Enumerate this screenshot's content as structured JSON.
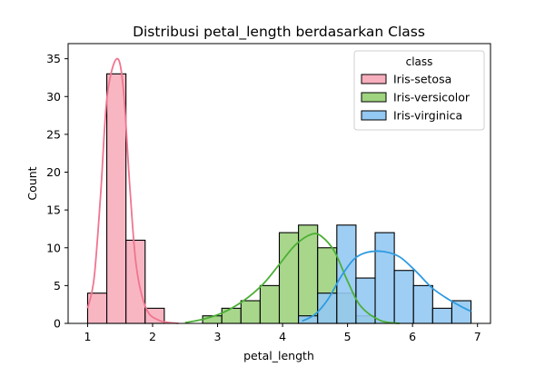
{
  "chart_data": {
    "type": "histogram",
    "title": "Distribusi petal_length berdasarkan Class",
    "xlabel": "petal_length",
    "ylabel": "Count",
    "xlim": [
      0.7,
      7.2
    ],
    "ylim": [
      0,
      37
    ],
    "x_ticks": [
      1,
      2,
      3,
      4,
      5,
      6,
      7
    ],
    "y_ticks": [
      0,
      5,
      10,
      15,
      20,
      25,
      30,
      35
    ],
    "bin_edges": [
      1.0,
      1.295,
      1.59,
      1.885,
      2.18,
      2.475,
      2.77,
      3.065,
      3.36,
      3.655,
      3.95,
      4.245,
      4.54,
      4.835,
      5.13,
      5.425,
      5.72,
      6.015,
      6.31,
      6.605,
      6.9
    ],
    "legend": {
      "title": "class",
      "position": "top-right"
    },
    "series": [
      {
        "name": "Iris-setosa",
        "color": "#f7aebd",
        "line_color": "#f0758f",
        "counts": [
          4,
          33,
          11,
          2,
          0,
          0,
          0,
          0,
          0,
          0,
          0,
          0,
          0,
          0,
          0,
          0,
          0,
          0,
          0,
          0
        ],
        "kde": [
          [
            1.0,
            2
          ],
          [
            1.1,
            6
          ],
          [
            1.2,
            17
          ],
          [
            1.3,
            30
          ],
          [
            1.45,
            35
          ],
          [
            1.55,
            31
          ],
          [
            1.65,
            18
          ],
          [
            1.75,
            7.5
          ],
          [
            1.9,
            2
          ],
          [
            2.1,
            0.4
          ],
          [
            2.4,
            0
          ]
        ]
      },
      {
        "name": "Iris-versicolor",
        "color": "#9fd37f",
        "line_color": "#4caf35",
        "counts": [
          0,
          0,
          0,
          0,
          0,
          0,
          1,
          2,
          3,
          5,
          12,
          13,
          10,
          4,
          1,
          0,
          0,
          0,
          0,
          0
        ],
        "kde": [
          [
            2.5,
            0.1
          ],
          [
            2.8,
            0.6
          ],
          [
            3.1,
            1.5
          ],
          [
            3.4,
            3
          ],
          [
            3.7,
            5.2
          ],
          [
            3.95,
            7.8
          ],
          [
            4.2,
            10.4
          ],
          [
            4.45,
            11.8
          ],
          [
            4.6,
            11.5
          ],
          [
            4.8,
            9.5
          ],
          [
            5.0,
            5.6
          ],
          [
            5.2,
            2.3
          ],
          [
            5.5,
            0.4
          ],
          [
            5.8,
            0
          ]
        ]
      },
      {
        "name": "Iris-virginica",
        "color": "#93c9f2",
        "line_color": "#2e9be0",
        "counts": [
          0,
          0,
          0,
          0,
          0,
          0,
          0,
          0,
          0,
          0,
          0,
          1,
          4,
          13,
          6,
          12,
          7,
          5,
          2,
          3
        ],
        "kde": [
          [
            4.3,
            0.3
          ],
          [
            4.5,
            1.2
          ],
          [
            4.7,
            3.2
          ],
          [
            4.9,
            6.2
          ],
          [
            5.1,
            8.5
          ],
          [
            5.3,
            9.4
          ],
          [
            5.55,
            9.5
          ],
          [
            5.8,
            8.8
          ],
          [
            6.05,
            6.9
          ],
          [
            6.3,
            4.7
          ],
          [
            6.55,
            3.2
          ],
          [
            6.8,
            2
          ],
          [
            6.9,
            1.6
          ]
        ]
      }
    ]
  }
}
